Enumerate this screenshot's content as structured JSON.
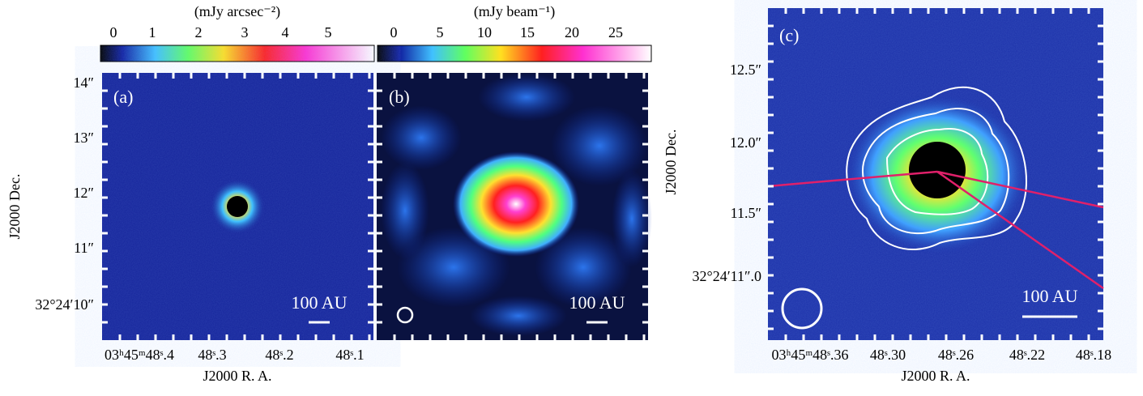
{
  "panels": [
    {
      "label": "(a)",
      "colorbar": {
        "unit": "(mJy arcsec⁻²)",
        "ticks": [
          "0",
          "1",
          "2",
          "3",
          "4",
          "5"
        ]
      },
      "scale_bar": "100 AU",
      "y_ticks": [
        "14″",
        "13″",
        "12″",
        "11″",
        "32°24′10″"
      ],
      "x_ticks": [
        "03ʰ45ᵐ48ˢ.4",
        "48ˢ.3",
        "48ˢ.2",
        "48ˢ.1"
      ],
      "x_title": "J2000  R. A.",
      "y_title": "J2000  Dec."
    },
    {
      "label": "(b)",
      "colorbar": {
        "unit": "(mJy beam⁻¹)",
        "ticks": [
          "0",
          "5",
          "10",
          "15",
          "20",
          "25"
        ]
      },
      "scale_bar": "100 AU"
    },
    {
      "label": "(c)",
      "scale_bar": "100 AU",
      "y_ticks": [
        "12.5″",
        "12.0″",
        "11.5″",
        "32°24′11″.0"
      ],
      "x_ticks": [
        "03ʰ45ᵐ48ˢ.36",
        "48ˢ.30",
        "48ˢ.26",
        "48ˢ.22",
        "48ˢ.18"
      ],
      "x_title": "J2000 R. A.",
      "y_title": "J2000 Dec."
    }
  ]
}
